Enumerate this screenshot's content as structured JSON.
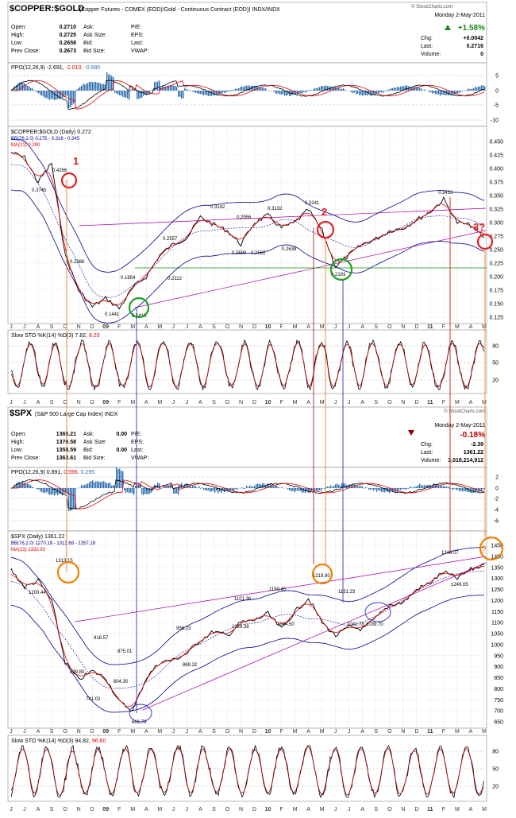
{
  "copper": {
    "symbol": "$COPPER:$GOLD",
    "desc": "(Copper Futures - COMEX (EOD)/Gold - Continuous Contract (EOD)) INDX/INDX",
    "credit": "© StockCharts.com",
    "date": "Monday  2-May-2011",
    "change_pct": "+1.58%",
    "quote_left": [
      {
        "label": "Open:",
        "value": "0.2710",
        "label2": "Ask:",
        "value2": "",
        "label3": "P/E:"
      },
      {
        "label": "High:",
        "value": "0.2725",
        "label2": "Ask Size:",
        "value2": "",
        "label3": "EPS:"
      },
      {
        "label": "Low:",
        "value": "0.2658",
        "label2": "Bid:",
        "value2": "",
        "label3": "Last:"
      },
      {
        "label": "Prev Close:",
        "value": "0.2673",
        "label2": "Bid Size:",
        "value2": "",
        "label3": "VWAP:"
      }
    ],
    "quote_right": [
      {
        "label": "Chg:",
        "value": "+0.0042"
      },
      {
        "label": "Last:",
        "value": "0.2716"
      },
      {
        "label": "Volume:",
        "value": "0"
      }
    ],
    "ppo": {
      "label": "PPO(12,26,9)",
      "v1": "-2.691,",
      "v2": "-2.010,",
      "v3": "-0.680",
      "ticks": [
        "5",
        "0",
        "-5",
        "-10"
      ]
    },
    "price": {
      "label": "$COPPER:$GOLD (Daily) 0.272",
      "bb": "BB(76,2.0) 0.275 - 0.318 - 0.345",
      "ma": "MA(21) 0.290",
      "yticks": [
        "0.450",
        "0.425",
        "0.400",
        "0.375",
        "0.350",
        "0.325",
        "0.300",
        "0.275",
        "0.250",
        "0.225",
        "0.200",
        "0.175",
        "0.150",
        "0.125"
      ],
      "annotations": [
        "0.3745",
        "0.4266",
        "0.2386",
        "0.1854",
        "0.1441",
        "0.1410",
        "0.2557",
        "0.2112",
        "0.3142",
        "0.2956",
        "0.2599",
        "0.2565",
        "0.3132",
        "0.2638",
        "0.3241",
        "0.2193",
        "0.3433"
      ],
      "marks": [
        "1",
        "2",
        "3?"
      ]
    },
    "sto": {
      "label": "Slow STO %K(14) %D(3)",
      "v1": "7.82,",
      "v2": "8.20",
      "ticks": [
        "80",
        "50",
        "20"
      ]
    }
  },
  "spx": {
    "symbol": "$SPX",
    "desc": "(S&P 500 Large Cap Index) INDX",
    "credit": "© StockCharts.com",
    "date": "Monday  2-May-2011",
    "change_pct": "-0.18%",
    "quote_left": [
      {
        "label": "Open:",
        "value": "1365.21",
        "label2": "Ask:",
        "value2": "0.00",
        "label3": "P/E:"
      },
      {
        "label": "High:",
        "value": "1370.58",
        "label2": "Ask Size:",
        "value2": "",
        "label3": "EPS:"
      },
      {
        "label": "Low:",
        "value": "1358.59",
        "label2": "Bid:",
        "value2": "0.00",
        "label3": "Last:"
      },
      {
        "label": "Prev Close:",
        "value": "1363.61",
        "label2": "Bid Size:",
        "value2": "",
        "label3": "VWAP:"
      }
    ],
    "quote_right": [
      {
        "label": "Chg:",
        "value": "-2.39"
      },
      {
        "label": "Last:",
        "value": "1361.22"
      },
      {
        "label": "Volume:",
        "value": "3,018,214,912"
      }
    ],
    "ppo": {
      "label": "PPO(12,26,9)",
      "v1": "0.891,",
      "v2": "0.596,",
      "v3": "0.295",
      "ticks": [
        "2",
        "0",
        "-2",
        "-4",
        "-6"
      ]
    },
    "price": {
      "label": "$SPX (Daily) 1361.22",
      "bb": "BB(76,2.0) 1270.19 - 1313.68 - 1357.18",
      "ma": "MA(21) 1332.92",
      "yticks": [
        "1450",
        "1400",
        "1350",
        "1300",
        "1250",
        "1200",
        "1150",
        "1100",
        "1050",
        "1000",
        "950",
        "900",
        "850",
        "800",
        "750",
        "700",
        "650"
      ],
      "annotations": [
        "1313.15",
        "1200.44",
        "918.57",
        "839.80",
        "741.02",
        "875.01",
        "804.30",
        "666.79",
        "956.23",
        "869.32",
        "1101.36",
        "1029.38",
        "1150.45",
        "1044.50",
        "1219.80",
        "1131.23",
        "1040.78",
        "1039.70",
        "1344.07",
        "1249.05"
      ],
      "marks": [
        "?"
      ]
    },
    "sto": {
      "label": "Slow STO %K(14) %D(3)",
      "v1": "94.82,",
      "v2": "96.60",
      "ticks": [
        "80",
        "50",
        "20"
      ]
    }
  },
  "months": [
    "J",
    "J",
    "A",
    "S",
    "O",
    "N",
    "D",
    "09",
    "F",
    "M",
    "A",
    "M",
    "J",
    "J",
    "A",
    "S",
    "O",
    "N",
    "D",
    "10",
    "F",
    "M",
    "A",
    "M",
    "J",
    "J",
    "A",
    "S",
    "O",
    "N",
    "D",
    "11",
    "F",
    "M",
    "A",
    "M"
  ],
  "colors": {
    "price": "#000000",
    "ma": "#e00000",
    "bb": "#00008b",
    "trend": "#a000a0",
    "ppo_hist": "#2f6fb0",
    "up": "#1a8a1a",
    "down": "#b00000",
    "circle_red": "#e02020",
    "circle_green": "#20a020",
    "circle_orange": "#f08000",
    "vline_orange": "#e08030",
    "vline_red": "#c02020",
    "vline_blue": "#3030c0"
  },
  "chart_data": [
    {
      "type": "line",
      "title": "$COPPER:$GOLD (Daily)",
      "x": [
        "2008-06",
        "2008-07",
        "2008-08",
        "2008-09",
        "2008-10",
        "2008-11",
        "2008-12",
        "2009-01",
        "2009-02",
        "2009-03",
        "2009-04",
        "2009-05",
        "2009-06",
        "2009-07",
        "2009-08",
        "2009-09",
        "2009-10",
        "2009-11",
        "2009-12",
        "2010-01",
        "2010-02",
        "2010-03",
        "2010-04",
        "2010-05",
        "2010-06",
        "2010-07",
        "2010-08",
        "2010-09",
        "2010-10",
        "2010-11",
        "2010-12",
        "2011-01",
        "2011-02",
        "2011-03",
        "2011-04",
        "2011-05"
      ],
      "series": [
        {
          "values": [
            0.43,
            0.42,
            0.375,
            0.41,
            0.239,
            0.175,
            0.144,
            0.16,
            0.141,
            0.18,
            0.2,
            0.24,
            0.26,
            0.272,
            0.31,
            0.296,
            0.285,
            0.26,
            0.3,
            0.313,
            0.29,
            0.3,
            0.324,
            0.285,
            0.219,
            0.24,
            0.26,
            0.27,
            0.285,
            0.29,
            0.305,
            0.32,
            0.343,
            0.3,
            0.295,
            0.272
          ]
        }
      ],
      "ylim": [
        0.125,
        0.45
      ]
    },
    {
      "type": "line",
      "title": "$SPX (Daily)",
      "x": [
        "2008-06",
        "2008-07",
        "2008-08",
        "2008-09",
        "2008-10",
        "2008-11",
        "2008-12",
        "2009-01",
        "2009-02",
        "2009-03",
        "2009-04",
        "2009-05",
        "2009-06",
        "2009-07",
        "2009-08",
        "2009-09",
        "2009-10",
        "2009-11",
        "2009-12",
        "2010-01",
        "2010-02",
        "2010-03",
        "2010-04",
        "2010-05",
        "2010-06",
        "2010-07",
        "2010-08",
        "2010-09",
        "2010-10",
        "2010-11",
        "2010-12",
        "2011-01",
        "2011-02",
        "2011-03",
        "2011-04",
        "2011-05"
      ],
      "series": [
        {
          "values": [
            1340,
            1260,
            1290,
            1200,
            920,
            840,
            880,
            850,
            740,
            700,
            850,
            920,
            930,
            960,
            1020,
            1060,
            1040,
            1100,
            1110,
            1140,
            1070,
            1150,
            1210,
            1100,
            1040,
            1080,
            1070,
            1120,
            1180,
            1190,
            1250,
            1280,
            1330,
            1300,
            1340,
            1361
          ]
        }
      ],
      "ylim": [
        650,
        1450
      ]
    }
  ]
}
